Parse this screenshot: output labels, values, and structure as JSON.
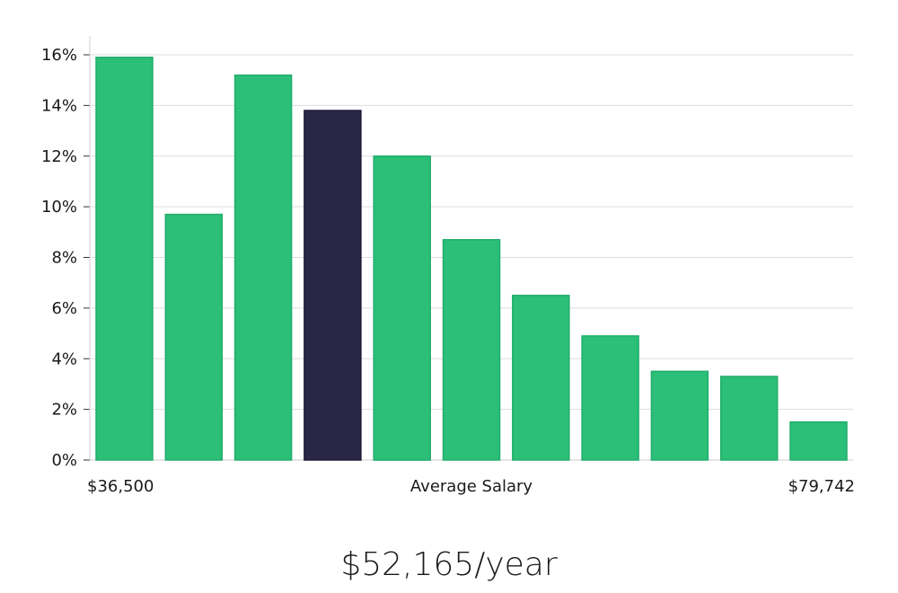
{
  "chart_data": {
    "type": "bar",
    "title": "",
    "xlabel": "Average Salary",
    "ylabel": "",
    "x_min_label": "$36,500",
    "x_max_label": "$79,742",
    "values": [
      15.9,
      9.7,
      15.2,
      13.8,
      12.0,
      8.7,
      6.5,
      4.9,
      3.5,
      3.3,
      1.5
    ],
    "highlight_index": 3,
    "ylim": [
      0,
      16
    ],
    "yticks": [
      0,
      2,
      4,
      6,
      8,
      10,
      12,
      14,
      16
    ],
    "ytick_labels": [
      "0%",
      "2%",
      "4%",
      "6%",
      "8%",
      "10%",
      "12%",
      "14%",
      "16%"
    ],
    "grid": true,
    "colors": {
      "bar": "#2bbf78",
      "bar_border": "#23ad6c",
      "highlight": "#2a2746",
      "highlight_border": "#1d1a3a",
      "grid": "#dddddd",
      "axis": "#cccccc"
    }
  },
  "summary": {
    "salary_text": "$52,165/year"
  }
}
